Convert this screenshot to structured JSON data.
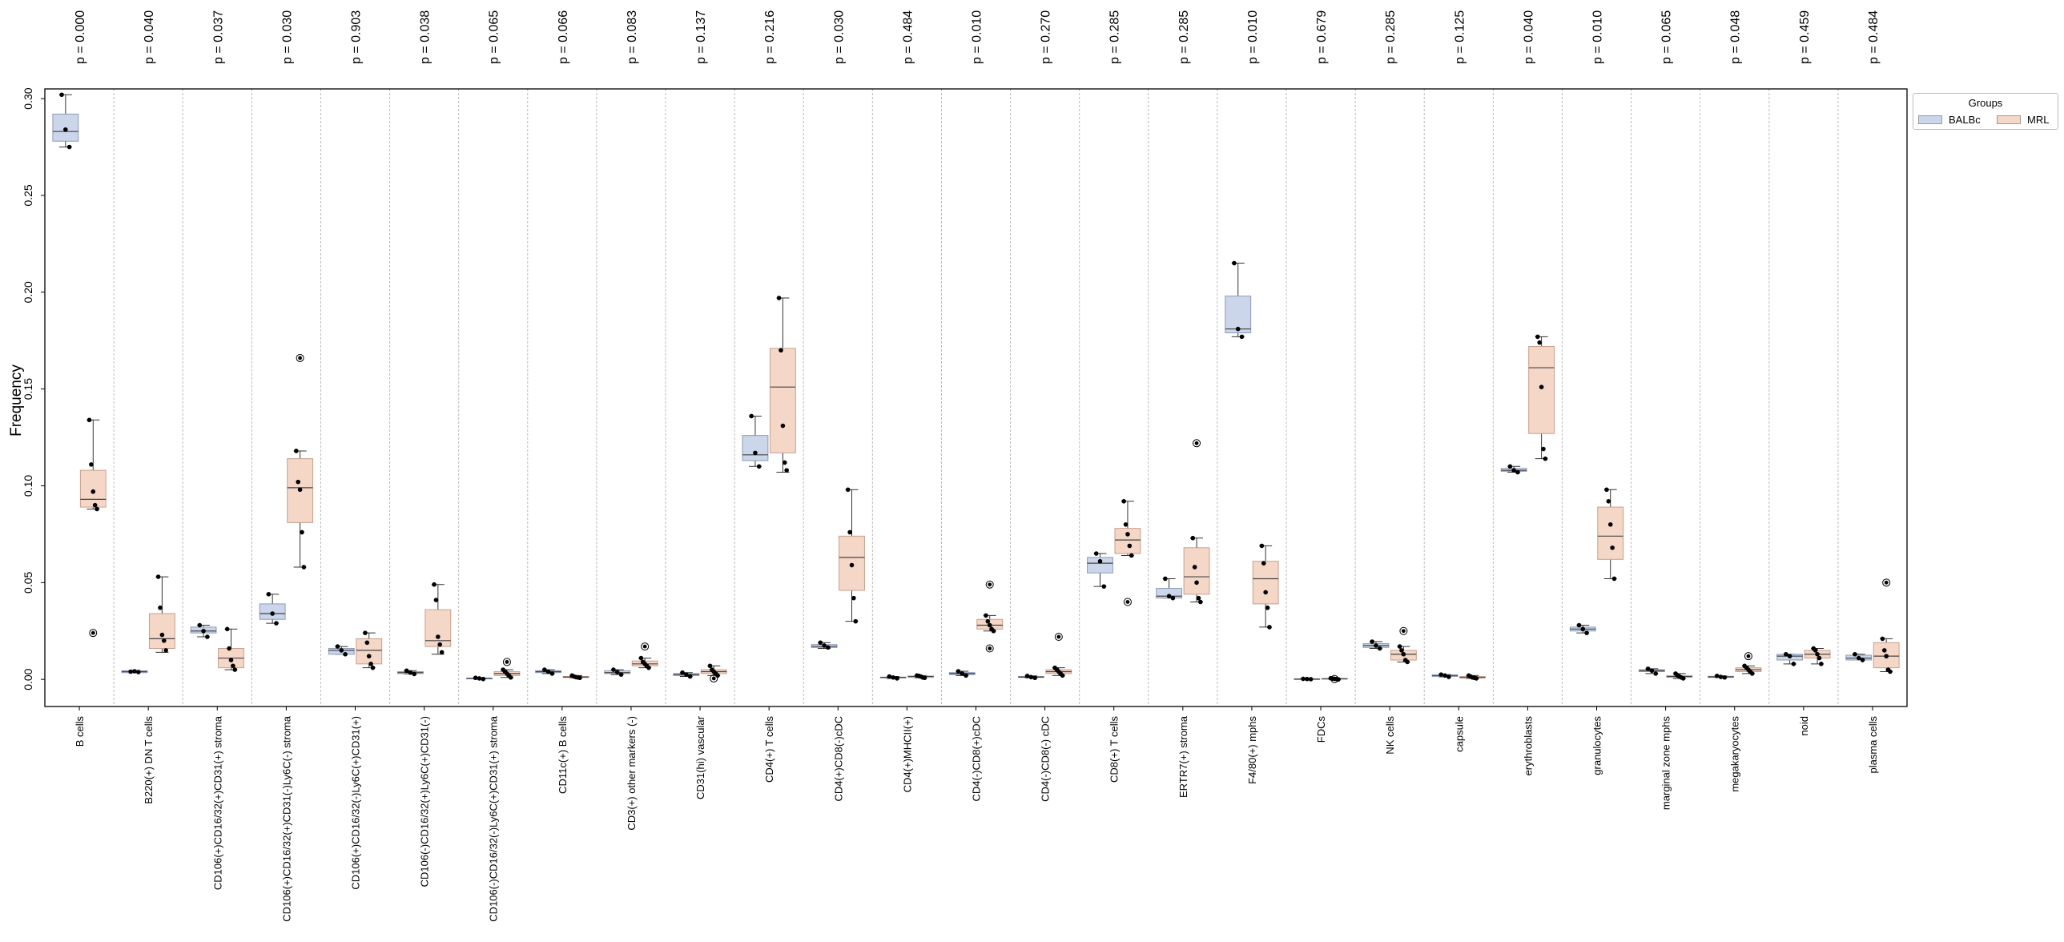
{
  "chart_data": {
    "type": "box",
    "ylabel": "Frequency",
    "xlabel": "",
    "ylim": [
      -0.014,
      0.305
    ],
    "yticks": [
      0.0,
      0.05,
      0.1,
      0.15,
      0.2,
      0.25,
      0.3
    ],
    "ytick_labels": [
      "0.00",
      "0.05",
      "0.10",
      "0.15",
      "0.20",
      "0.25",
      "0.30"
    ],
    "grid": "vertical dashed separators between categories",
    "legend": {
      "title": "Groups",
      "placement": "outside top-right",
      "entries": [
        {
          "name": "BALBc",
          "color": "#cbd6eb"
        },
        {
          "name": "MRL",
          "color": "#f5d7c8"
        }
      ]
    },
    "categories": [
      "B cells",
      "B220(+) DN T cells",
      "CD106(+)CD16/32(+)CD31(+) stroma",
      "CD106(+)CD16/32(+)CD31(-)Ly6C(-) stroma",
      "CD106(+)CD16/32(-)Ly6C(+)CD31(+)",
      "CD106(-)CD16/32(+)Ly6C(+)CD31(-)",
      "CD106(-)CD16/32(-)Ly6C(+)CD31(+) stroma",
      "CD11c(+) B cells",
      "CD3(+) other markers (-)",
      "CD31(hi) vascular",
      "CD4(+) T cells",
      "CD4(+)CD8(-)cDC",
      "CD4(+)MHCII(+)",
      "CD4(-)CD8(+)cDC",
      "CD4(-)CD8(-) cDC",
      "CD8(+) T cells",
      "ERTR7(+) stroma",
      "F4/80(+) mphs",
      "FDCs",
      "NK cells",
      "capsule",
      "erythroblasts",
      "granulocytes",
      "marginal zone mphs",
      "megakaryocytes",
      "noid",
      "plasma cells"
    ],
    "p_values": [
      "p = 0.000",
      "p = 0.040",
      "p = 0.037",
      "p = 0.030",
      "p = 0.903",
      "p = 0.038",
      "p = 0.065",
      "p = 0.066",
      "p = 0.083",
      "p = 0.137",
      "p = 0.216",
      "p = 0.030",
      "p = 0.484",
      "p = 0.010",
      "p = 0.270",
      "p = 0.285",
      "p = 0.285",
      "p = 0.010",
      "p = 0.679",
      "p = 0.285",
      "p = 0.125",
      "p = 0.040",
      "p = 0.010",
      "p = 0.065",
      "p = 0.048",
      "p = 0.459",
      "p = 0.484"
    ],
    "series": [
      {
        "name": "BALBc",
        "color": "#cbd6eb",
        "boxes": [
          {
            "q1": 0.278,
            "med": 0.283,
            "q3": 0.292,
            "wlo": 0.275,
            "whi": 0.302,
            "points": [
              0.302,
              0.284,
              0.275
            ],
            "outliers": []
          },
          {
            "q1": 0.0035,
            "med": 0.004,
            "q3": 0.0045,
            "wlo": 0.0035,
            "whi": 0.0045,
            "points": [
              0.004,
              0.0042,
              0.0038
            ],
            "outliers": []
          },
          {
            "q1": 0.024,
            "med": 0.025,
            "q3": 0.027,
            "wlo": 0.022,
            "whi": 0.028,
            "points": [
              0.028,
              0.025,
              0.022
            ],
            "outliers": []
          },
          {
            "q1": 0.031,
            "med": 0.034,
            "q3": 0.039,
            "wlo": 0.029,
            "whi": 0.044,
            "points": [
              0.044,
              0.034,
              0.029
            ],
            "outliers": []
          },
          {
            "q1": 0.013,
            "med": 0.015,
            "q3": 0.016,
            "wlo": 0.013,
            "whi": 0.017,
            "points": [
              0.017,
              0.015,
              0.013
            ],
            "outliers": []
          },
          {
            "q1": 0.003,
            "med": 0.0035,
            "q3": 0.004,
            "wlo": 0.0028,
            "whi": 0.0045,
            "points": [
              0.0045,
              0.0035,
              0.0028
            ],
            "outliers": []
          },
          {
            "q1": 0.0003,
            "med": 0.0005,
            "q3": 0.0007,
            "wlo": 0.0002,
            "whi": 0.0008,
            "points": [
              0.0008,
              0.0005,
              0.0002
            ],
            "outliers": []
          },
          {
            "q1": 0.0035,
            "med": 0.004,
            "q3": 0.0045,
            "wlo": 0.003,
            "whi": 0.005,
            "points": [
              0.005,
              0.004,
              0.003
            ],
            "outliers": []
          },
          {
            "q1": 0.003,
            "med": 0.0035,
            "q3": 0.0045,
            "wlo": 0.0025,
            "whi": 0.005,
            "points": [
              0.005,
              0.0038,
              0.0025
            ],
            "outliers": []
          },
          {
            "q1": 0.002,
            "med": 0.0025,
            "q3": 0.003,
            "wlo": 0.0015,
            "whi": 0.0035,
            "points": [
              0.0035,
              0.0025,
              0.0015
            ],
            "outliers": []
          },
          {
            "q1": 0.113,
            "med": 0.116,
            "q3": 0.126,
            "wlo": 0.11,
            "whi": 0.136,
            "points": [
              0.136,
              0.117,
              0.11
            ],
            "outliers": []
          },
          {
            "q1": 0.0165,
            "med": 0.017,
            "q3": 0.018,
            "wlo": 0.016,
            "whi": 0.019,
            "points": [
              0.019,
              0.0175,
              0.0165
            ],
            "outliers": []
          },
          {
            "q1": 0.0008,
            "med": 0.001,
            "q3": 0.0012,
            "wlo": 0.0005,
            "whi": 0.0015,
            "points": [
              0.0015,
              0.001,
              0.0005
            ],
            "outliers": []
          },
          {
            "q1": 0.0025,
            "med": 0.003,
            "q3": 0.0035,
            "wlo": 0.002,
            "whi": 0.0042,
            "points": [
              0.0042,
              0.003,
              0.002
            ],
            "outliers": []
          },
          {
            "q1": 0.001,
            "med": 0.0012,
            "q3": 0.0015,
            "wlo": 0.0008,
            "whi": 0.0018,
            "points": [
              0.0018,
              0.0012,
              0.0008
            ],
            "outliers": []
          },
          {
            "q1": 0.055,
            "med": 0.06,
            "q3": 0.063,
            "wlo": 0.048,
            "whi": 0.065,
            "points": [
              0.065,
              0.061,
              0.048
            ],
            "outliers": []
          },
          {
            "q1": 0.042,
            "med": 0.043,
            "q3": 0.047,
            "wlo": 0.042,
            "whi": 0.052,
            "points": [
              0.052,
              0.043,
              0.042
            ],
            "outliers": []
          },
          {
            "q1": 0.179,
            "med": 0.181,
            "q3": 0.198,
            "wlo": 0.177,
            "whi": 0.215,
            "points": [
              0.215,
              0.181,
              0.177
            ],
            "outliers": []
          },
          {
            "q1": 0.0001,
            "med": 0.0002,
            "q3": 0.0003,
            "wlo": 0.0001,
            "whi": 0.0004,
            "points": [
              0.0003,
              0.0002,
              0.0001
            ],
            "outliers": []
          },
          {
            "q1": 0.0165,
            "med": 0.0175,
            "q3": 0.0185,
            "wlo": 0.016,
            "whi": 0.0195,
            "points": [
              0.0195,
              0.0175,
              0.016
            ],
            "outliers": []
          },
          {
            "q1": 0.0015,
            "med": 0.002,
            "q3": 0.0023,
            "wlo": 0.0013,
            "whi": 0.0025,
            "points": [
              0.0025,
              0.002,
              0.0013
            ],
            "outliers": []
          },
          {
            "q1": 0.1075,
            "med": 0.108,
            "q3": 0.109,
            "wlo": 0.107,
            "whi": 0.11,
            "points": [
              0.11,
              0.108,
              0.107
            ],
            "outliers": []
          },
          {
            "q1": 0.025,
            "med": 0.026,
            "q3": 0.027,
            "wlo": 0.024,
            "whi": 0.028,
            "points": [
              0.028,
              0.026,
              0.024
            ],
            "outliers": []
          },
          {
            "q1": 0.004,
            "med": 0.0045,
            "q3": 0.005,
            "wlo": 0.003,
            "whi": 0.0055,
            "points": [
              0.0055,
              0.0045,
              0.003
            ],
            "outliers": []
          },
          {
            "q1": 0.001,
            "med": 0.0013,
            "q3": 0.0016,
            "wlo": 0.001,
            "whi": 0.0018,
            "points": [
              0.0018,
              0.0013,
              0.001
            ],
            "outliers": []
          },
          {
            "q1": 0.01,
            "med": 0.012,
            "q3": 0.013,
            "wlo": 0.008,
            "whi": 0.013,
            "points": [
              0.013,
              0.012,
              0.008
            ],
            "outliers": []
          },
          {
            "q1": 0.01,
            "med": 0.011,
            "q3": 0.0125,
            "wlo": 0.01,
            "whi": 0.013,
            "points": [
              0.013,
              0.011,
              0.01
            ],
            "outliers": []
          }
        ]
      },
      {
        "name": "MRL",
        "color": "#f5d7c8",
        "boxes": [
          {
            "q1": 0.089,
            "med": 0.093,
            "q3": 0.108,
            "wlo": 0.088,
            "whi": 0.134,
            "points": [
              0.134,
              0.111,
              0.097,
              0.09,
              0.088
            ],
            "outliers": [
              0.024
            ]
          },
          {
            "q1": 0.016,
            "med": 0.021,
            "q3": 0.034,
            "wlo": 0.014,
            "whi": 0.053,
            "points": [
              0.053,
              0.037,
              0.023,
              0.02,
              0.015
            ],
            "outliers": []
          },
          {
            "q1": 0.006,
            "med": 0.011,
            "q3": 0.016,
            "wlo": 0.005,
            "whi": 0.026,
            "points": [
              0.026,
              0.016,
              0.01,
              0.007,
              0.005
            ],
            "outliers": []
          },
          {
            "q1": 0.081,
            "med": 0.099,
            "q3": 0.114,
            "wlo": 0.058,
            "whi": 0.118,
            "points": [
              0.118,
              0.102,
              0.098,
              0.076,
              0.058
            ],
            "outliers": [
              0.166
            ]
          },
          {
            "q1": 0.008,
            "med": 0.015,
            "q3": 0.021,
            "wlo": 0.006,
            "whi": 0.024,
            "points": [
              0.024,
              0.019,
              0.012,
              0.008,
              0.006
            ],
            "outliers": []
          },
          {
            "q1": 0.017,
            "med": 0.02,
            "q3": 0.036,
            "wlo": 0.013,
            "whi": 0.049,
            "points": [
              0.049,
              0.041,
              0.022,
              0.018,
              0.014
            ],
            "outliers": []
          },
          {
            "q1": 0.002,
            "med": 0.003,
            "q3": 0.004,
            "wlo": 0.001,
            "whi": 0.005,
            "points": [
              0.005,
              0.004,
              0.003,
              0.002,
              0.001
            ],
            "outliers": [
              0.009
            ]
          },
          {
            "q1": 0.001,
            "med": 0.0012,
            "q3": 0.0015,
            "wlo": 0.0008,
            "whi": 0.002,
            "points": [
              0.002,
              0.0015,
              0.0012,
              0.001,
              0.0008
            ],
            "outliers": []
          },
          {
            "q1": 0.007,
            "med": 0.008,
            "q3": 0.0095,
            "wlo": 0.006,
            "whi": 0.011,
            "points": [
              0.011,
              0.009,
              0.008,
              0.007,
              0.006
            ],
            "outliers": [
              0.017
            ]
          },
          {
            "q1": 0.003,
            "med": 0.004,
            "q3": 0.005,
            "wlo": 0.002,
            "whi": 0.007,
            "points": [
              0.007,
              0.005,
              0.004,
              0.003,
              0.002
            ],
            "outliers": [
              0.0005
            ]
          },
          {
            "q1": 0.117,
            "med": 0.151,
            "q3": 0.171,
            "wlo": 0.107,
            "whi": 0.197,
            "points": [
              0.197,
              0.17,
              0.131,
              0.112,
              0.108
            ],
            "outliers": []
          },
          {
            "q1": 0.046,
            "med": 0.063,
            "q3": 0.074,
            "wlo": 0.03,
            "whi": 0.098,
            "points": [
              0.098,
              0.076,
              0.059,
              0.042,
              0.03
            ],
            "outliers": []
          },
          {
            "q1": 0.001,
            "med": 0.0015,
            "q3": 0.0018,
            "wlo": 0.0008,
            "whi": 0.002,
            "points": [
              0.002,
              0.0018,
              0.0015,
              0.001,
              0.0008
            ],
            "outliers": []
          },
          {
            "q1": 0.026,
            "med": 0.028,
            "q3": 0.031,
            "wlo": 0.025,
            "whi": 0.033,
            "points": [
              0.033,
              0.03,
              0.028,
              0.026,
              0.025
            ],
            "outliers": [
              0.049,
              0.016
            ]
          },
          {
            "q1": 0.003,
            "med": 0.004,
            "q3": 0.005,
            "wlo": 0.002,
            "whi": 0.006,
            "points": [
              0.006,
              0.005,
              0.004,
              0.003,
              0.002
            ],
            "outliers": [
              0.022
            ]
          },
          {
            "q1": 0.065,
            "med": 0.072,
            "q3": 0.078,
            "wlo": 0.064,
            "whi": 0.092,
            "points": [
              0.092,
              0.08,
              0.075,
              0.069,
              0.064
            ],
            "outliers": [
              0.04
            ]
          },
          {
            "q1": 0.044,
            "med": 0.053,
            "q3": 0.068,
            "wlo": 0.04,
            "whi": 0.073,
            "points": [
              0.073,
              0.058,
              0.05,
              0.042,
              0.04
            ],
            "outliers": [
              0.122
            ]
          },
          {
            "q1": 0.039,
            "med": 0.052,
            "q3": 0.061,
            "wlo": 0.027,
            "whi": 0.069,
            "points": [
              0.069,
              0.06,
              0.045,
              0.037,
              0.027
            ],
            "outliers": []
          },
          {
            "q1": 0.0001,
            "med": 0.0003,
            "q3": 0.0005,
            "wlo": 0.0,
            "whi": 0.0006,
            "points": [
              0.0006,
              0.0004,
              0.0003,
              0.0002,
              0.0
            ],
            "outliers": [
              0.0002
            ]
          },
          {
            "q1": 0.01,
            "med": 0.013,
            "q3": 0.015,
            "wlo": 0.009,
            "whi": 0.017,
            "points": [
              0.017,
              0.015,
              0.013,
              0.01,
              0.009
            ],
            "outliers": [
              0.025
            ]
          },
          {
            "q1": 0.0008,
            "med": 0.001,
            "q3": 0.0015,
            "wlo": 0.0005,
            "whi": 0.002,
            "points": [
              0.002,
              0.0015,
              0.001,
              0.0008,
              0.0005
            ],
            "outliers": []
          },
          {
            "q1": 0.127,
            "med": 0.161,
            "q3": 0.172,
            "wlo": 0.114,
            "whi": 0.177,
            "points": [
              0.177,
              0.174,
              0.151,
              0.119,
              0.114
            ],
            "outliers": []
          },
          {
            "q1": 0.062,
            "med": 0.074,
            "q3": 0.089,
            "wlo": 0.052,
            "whi": 0.098,
            "points": [
              0.098,
              0.092,
              0.08,
              0.068,
              0.052
            ],
            "outliers": []
          },
          {
            "q1": 0.001,
            "med": 0.0015,
            "q3": 0.002,
            "wlo": 0.0005,
            "whi": 0.003,
            "points": [
              0.003,
              0.002,
              0.0015,
              0.001,
              0.0005
            ],
            "outliers": []
          },
          {
            "q1": 0.004,
            "med": 0.005,
            "q3": 0.006,
            "wlo": 0.003,
            "whi": 0.007,
            "points": [
              0.007,
              0.006,
              0.005,
              0.004,
              0.003
            ],
            "outliers": [
              0.012
            ]
          },
          {
            "q1": 0.011,
            "med": 0.013,
            "q3": 0.015,
            "wlo": 0.008,
            "whi": 0.016,
            "points": [
              0.016,
              0.015,
              0.013,
              0.011,
              0.008
            ],
            "outliers": []
          },
          {
            "q1": 0.006,
            "med": 0.012,
            "q3": 0.019,
            "wlo": 0.004,
            "whi": 0.021,
            "points": [
              0.021,
              0.015,
              0.012,
              0.005,
              0.004
            ],
            "outliers": [
              0.05
            ]
          }
        ]
      }
    ]
  }
}
